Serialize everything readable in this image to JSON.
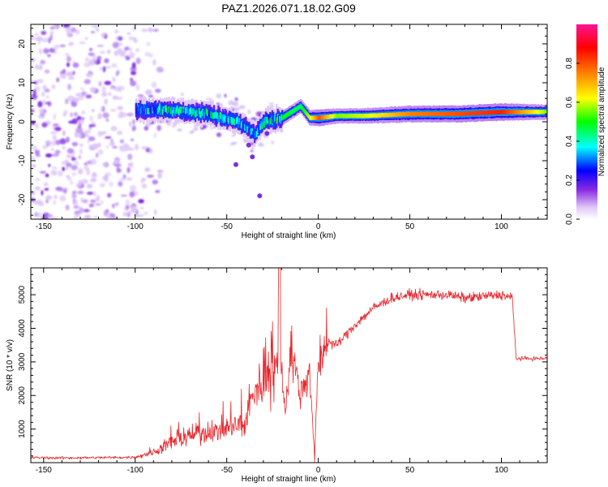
{
  "title": "PAZ1.2026.071.18.02.G09",
  "chart_data": [
    {
      "type": "heatmap",
      "name": "spectrogram",
      "xlabel": "Height of straight line (km)",
      "ylabel": "Frequency (Hz)",
      "xlim": [
        -157,
        125
      ],
      "ylim": [
        -25,
        25
      ],
      "x_ticks": [
        -150,
        -100,
        -50,
        0,
        50,
        100
      ],
      "y_ticks": [
        -20,
        -10,
        0,
        10,
        20
      ],
      "colorbar": {
        "label": "Normalized spectral amplitude",
        "range": [
          0,
          1
        ],
        "ticks": [
          0.0,
          0.2,
          0.4,
          0.6,
          0.8
        ],
        "colors": [
          "#e8d4f8",
          "#8a2be2",
          "#0000ff",
          "#00ffff",
          "#00ff00",
          "#ffff00",
          "#ff8000",
          "#ff0000",
          "#ff1493"
        ]
      },
      "ridge": {
        "x": [
          -100,
          -80,
          -60,
          -45,
          -35,
          -30,
          -20,
          -10,
          -5,
          0,
          10,
          25,
          50,
          75,
          100,
          125
        ],
        "freq": [
          3,
          3,
          2,
          0,
          -3,
          0,
          1,
          4,
          1,
          1,
          1.5,
          1.5,
          2,
          2,
          2.5,
          2.5
        ],
        "amplitude": [
          0.35,
          0.4,
          0.4,
          0.35,
          0.3,
          0.4,
          0.5,
          0.45,
          0.6,
          0.8,
          0.55,
          0.6,
          0.75,
          0.8,
          0.85,
          0.55
        ]
      },
      "noise_region": [
        -157,
        -95
      ]
    },
    {
      "type": "line",
      "name": "snr",
      "xlabel": "Height of straight line (km)",
      "ylabel": "SNR (10 * v/v)",
      "xlim": [
        -157,
        125
      ],
      "ylim": [
        0,
        5800
      ],
      "x_ticks": [
        -150,
        -100,
        -50,
        0,
        50,
        100
      ],
      "y_ticks": [
        1000,
        2000,
        3000,
        4000,
        5000
      ],
      "color": "#e8262b",
      "x": [
        -157,
        -140,
        -120,
        -100,
        -90,
        -80,
        -70,
        -60,
        -50,
        -40,
        -35,
        -30,
        -25,
        -20,
        -18,
        -15,
        -10,
        -5,
        -2,
        0,
        5,
        10,
        20,
        30,
        40,
        50,
        60,
        70,
        80,
        90,
        100,
        106,
        108,
        110,
        125
      ],
      "y": [
        150,
        140,
        150,
        160,
        300,
        600,
        800,
        900,
        1000,
        1200,
        2000,
        2500,
        3000,
        2500,
        1500,
        3500,
        2000,
        2800,
        200,
        3000,
        3600,
        3500,
        4100,
        4600,
        4900,
        5000,
        5000,
        5000,
        4900,
        4950,
        5000,
        4900,
        3100,
        3100,
        3100
      ]
    }
  ]
}
